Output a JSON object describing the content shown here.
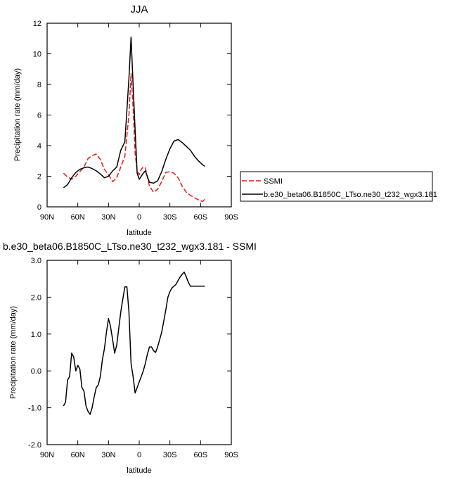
{
  "chart_data": [
    {
      "type": "line",
      "title": "JJA",
      "xlabel": "latitude",
      "ylabel": "Precipitation rate (mm/day)",
      "xlim": [
        90,
        -90
      ],
      "ylim": [
        0,
        12
      ],
      "x_ticks": [
        90,
        60,
        30,
        0,
        -30,
        -60,
        -90
      ],
      "x_tick_labels": [
        "90N",
        "60N",
        "30N",
        "0",
        "30S",
        "60S",
        "90S"
      ],
      "y_ticks": [
        0,
        2,
        4,
        6,
        8,
        10,
        12
      ],
      "y_tick_labels": [
        "0",
        "2",
        "4",
        "6",
        "8",
        "10",
        "12"
      ],
      "legend_position": "right",
      "series": [
        {
          "name": "SSMI",
          "color": "#e41a1c",
          "dash": "dashed",
          "x": [
            74,
            70,
            66,
            62,
            58,
            54,
            50,
            46,
            42,
            38,
            34,
            30,
            26,
            22,
            18,
            14,
            10,
            8,
            6,
            4,
            2,
            0,
            -2,
            -4,
            -6,
            -10,
            -14,
            -18,
            -22,
            -26,
            -30,
            -34,
            -38,
            -42,
            -46,
            -50,
            -54,
            -58,
            -62,
            -64
          ],
          "y": [
            2.2,
            1.95,
            1.8,
            2.0,
            2.3,
            2.6,
            3.15,
            3.35,
            3.45,
            3.1,
            2.45,
            2.1,
            1.65,
            1.9,
            2.6,
            3.3,
            6.0,
            8.7,
            6.5,
            3.5,
            2.35,
            2.1,
            2.45,
            2.6,
            2.55,
            1.35,
            0.95,
            1.15,
            1.65,
            2.25,
            2.3,
            2.2,
            1.9,
            1.35,
            0.95,
            0.75,
            0.6,
            0.45,
            0.35,
            0.5
          ]
        },
        {
          "name": "b.e30_beta06.B1850C_LTso.ne30_t232_wgx3.181",
          "color": "#000000",
          "dash": "solid",
          "x": [
            74,
            70,
            66,
            62,
            58,
            54,
            50,
            46,
            42,
            38,
            34,
            30,
            26,
            22,
            18,
            14,
            10,
            8,
            6,
            4,
            2,
            0,
            -2,
            -4,
            -6,
            -10,
            -14,
            -18,
            -22,
            -26,
            -30,
            -34,
            -38,
            -42,
            -46,
            -50,
            -54,
            -58,
            -62,
            -64
          ],
          "y": [
            1.25,
            1.45,
            1.9,
            2.25,
            2.45,
            2.55,
            2.6,
            2.5,
            2.35,
            2.15,
            1.9,
            2.0,
            2.35,
            2.6,
            3.7,
            4.25,
            8.4,
            11.1,
            8.0,
            5.0,
            2.2,
            1.8,
            2.0,
            2.2,
            2.35,
            1.6,
            1.55,
            1.7,
            2.3,
            3.1,
            3.8,
            4.3,
            4.4,
            4.2,
            3.95,
            3.7,
            3.3,
            3.0,
            2.75,
            2.65
          ]
        }
      ]
    },
    {
      "type": "line",
      "title": "b.e30_beta06.B1850C_LTso.ne30_t232_wgx3.181 - SSMI",
      "xlabel": "latitude",
      "ylabel": "Precipitation rate (mm/day)",
      "xlim": [
        90,
        -90
      ],
      "ylim": [
        -2.0,
        3.0
      ],
      "x_ticks": [
        90,
        60,
        30,
        0,
        -30,
        -60,
        -90
      ],
      "x_tick_labels": [
        "90N",
        "60N",
        "30N",
        "0",
        "30S",
        "60S",
        "90S"
      ],
      "y_ticks": [
        -2.0,
        -1.0,
        0.0,
        1.0,
        2.0,
        3.0
      ],
      "y_tick_labels": [
        "-2.0",
        "-1.0",
        "0.0",
        "1.0",
        "2.0",
        "3.0"
      ],
      "series": [
        {
          "color": "#000000",
          "dash": "solid",
          "x": [
            74,
            72,
            70,
            68,
            66,
            64,
            62,
            60,
            58,
            56,
            54,
            52,
            50,
            48,
            46,
            44,
            42,
            40,
            38,
            36,
            34,
            32,
            30,
            28,
            26,
            24,
            22,
            20,
            18,
            16,
            14,
            12,
            10,
            8,
            6,
            4,
            2,
            0,
            -2,
            -4,
            -6,
            -8,
            -10,
            -12,
            -14,
            -16,
            -18,
            -20,
            -22,
            -24,
            -26,
            -28,
            -30,
            -32,
            -34,
            -36,
            -38,
            -40,
            -42,
            -44,
            -46,
            -48,
            -50,
            -52,
            -54,
            -56,
            -58,
            -60,
            -62,
            -64
          ],
          "y": [
            -0.95,
            -0.85,
            -0.25,
            -0.15,
            0.48,
            0.38,
            0.0,
            0.15,
            0.05,
            -0.45,
            -0.55,
            -0.95,
            -1.1,
            -1.18,
            -1.0,
            -0.7,
            -0.45,
            -0.38,
            -0.15,
            0.3,
            0.6,
            1.05,
            1.42,
            1.2,
            0.85,
            0.48,
            0.7,
            1.15,
            1.6,
            1.95,
            2.28,
            2.28,
            1.6,
            0.2,
            -0.15,
            -0.6,
            -0.45,
            -0.3,
            -0.15,
            0.0,
            0.2,
            0.45,
            0.65,
            0.65,
            0.55,
            0.5,
            0.65,
            0.85,
            1.05,
            1.35,
            1.65,
            2.0,
            2.15,
            2.25,
            2.3,
            2.35,
            2.45,
            2.55,
            2.62,
            2.68,
            2.55,
            2.4,
            2.3,
            2.3,
            2.3,
            2.3,
            2.3,
            2.3,
            2.3,
            2.3
          ]
        }
      ]
    }
  ]
}
